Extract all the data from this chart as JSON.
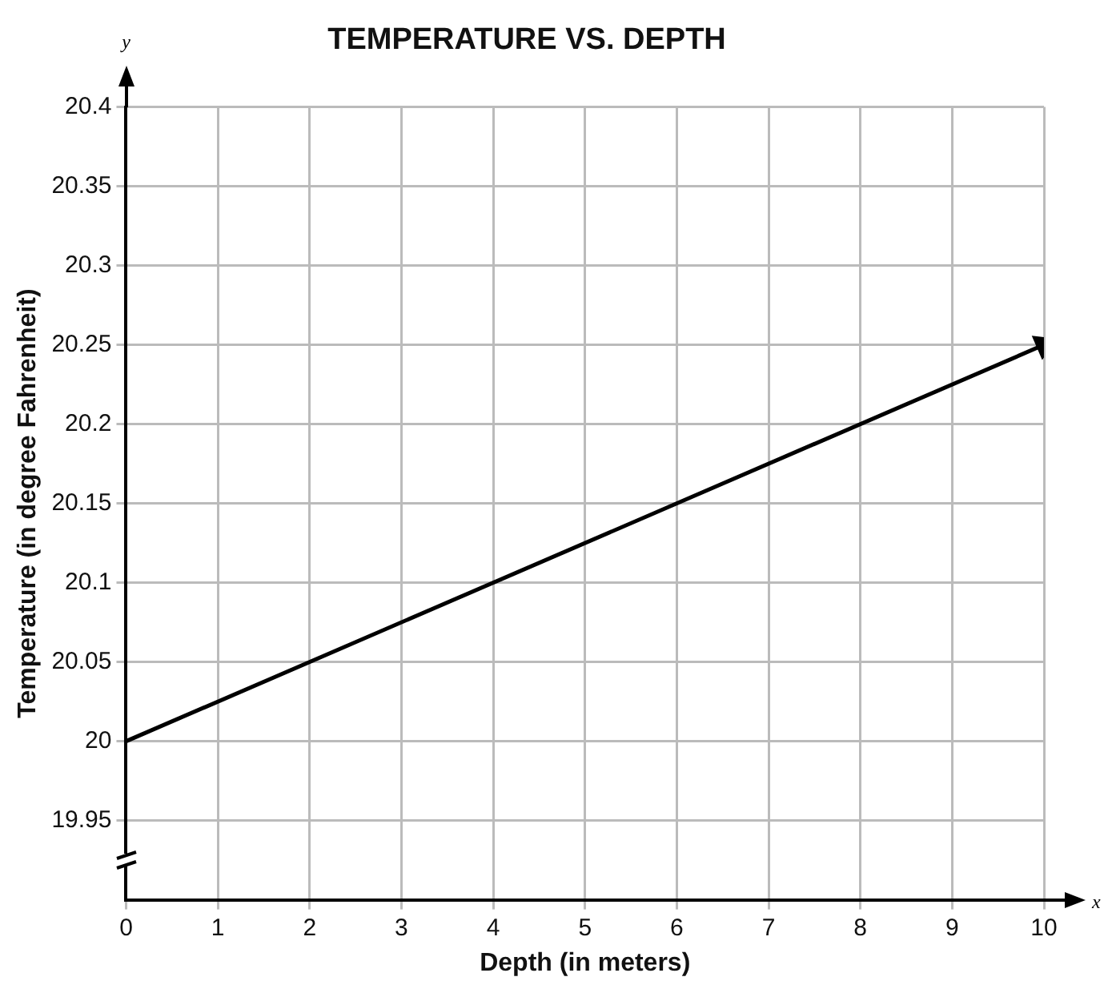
{
  "chart_data": {
    "type": "line",
    "title": "TEMPERATURE VS. DEPTH",
    "xlabel": "Depth (in meters)",
    "ylabel": "Temperature (in degree Fahrenheit)",
    "annotations": [
      "y",
      "x"
    ],
    "series": [
      {
        "x": [
          0,
          10
        ],
        "values": [
          20,
          20.25
        ],
        "color": "#000000"
      }
    ],
    "xlim": [
      0,
      10
    ],
    "xticks": [
      0,
      1,
      2,
      3,
      4,
      5,
      6,
      7,
      8,
      9,
      10
    ],
    "ylim": [
      19.9,
      20.4
    ],
    "yticks": [
      19.95,
      20,
      20.05,
      20.1,
      20.15,
      20.2,
      20.25,
      20.3,
      20.35,
      20.4
    ],
    "grid": true,
    "legend": false,
    "line_style": "solid"
  }
}
